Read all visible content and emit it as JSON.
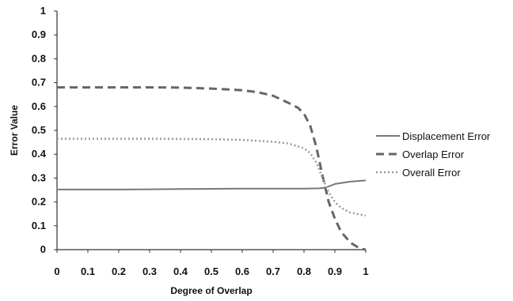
{
  "chart_data": {
    "type": "line",
    "title": "",
    "xlabel": "Degree of Overlap",
    "ylabel": "Error Value",
    "xlim": [
      0,
      1
    ],
    "ylim": [
      0,
      1
    ],
    "xticks": [
      "0",
      "0.1",
      "0.2",
      "0.3",
      "0.4",
      "0.5",
      "0.6",
      "0.7",
      "0.8",
      "0.9",
      "1"
    ],
    "yticks": [
      "0",
      "0.1",
      "0.2",
      "0.3",
      "0.4",
      "0.5",
      "0.6",
      "0.7",
      "0.8",
      "0.9",
      "1"
    ],
    "grid": false,
    "legend_position": "right",
    "series": [
      {
        "name": "Displacement Error",
        "style": "solid",
        "color": "#777777",
        "x": [
          0,
          0.1,
          0.2,
          0.3,
          0.4,
          0.5,
          0.6,
          0.7,
          0.75,
          0.8,
          0.85,
          0.87,
          0.9,
          0.95,
          1.0
        ],
        "y": [
          0.252,
          0.252,
          0.252,
          0.253,
          0.254,
          0.255,
          0.256,
          0.256,
          0.256,
          0.256,
          0.257,
          0.26,
          0.275,
          0.285,
          0.29
        ]
      },
      {
        "name": "Overlap Error",
        "style": "dashed",
        "color": "#666666",
        "x": [
          0,
          0.1,
          0.2,
          0.3,
          0.4,
          0.5,
          0.55,
          0.6,
          0.65,
          0.7,
          0.75,
          0.78,
          0.8,
          0.82,
          0.84,
          0.86,
          0.88,
          0.9,
          0.92,
          0.95,
          0.98,
          1.0
        ],
        "y": [
          0.68,
          0.68,
          0.68,
          0.68,
          0.679,
          0.675,
          0.672,
          0.668,
          0.66,
          0.645,
          0.615,
          0.595,
          0.57,
          0.52,
          0.43,
          0.31,
          0.2,
          0.13,
          0.075,
          0.03,
          0.005,
          0.0
        ]
      },
      {
        "name": "Overall Error",
        "style": "dotted",
        "color": "#999999",
        "x": [
          0,
          0.1,
          0.2,
          0.3,
          0.4,
          0.5,
          0.6,
          0.7,
          0.75,
          0.8,
          0.82,
          0.84,
          0.86,
          0.88,
          0.9,
          0.92,
          0.95,
          1.0
        ],
        "y": [
          0.465,
          0.465,
          0.465,
          0.465,
          0.464,
          0.463,
          0.46,
          0.452,
          0.445,
          0.425,
          0.405,
          0.365,
          0.3,
          0.24,
          0.2,
          0.175,
          0.155,
          0.143
        ]
      }
    ]
  }
}
